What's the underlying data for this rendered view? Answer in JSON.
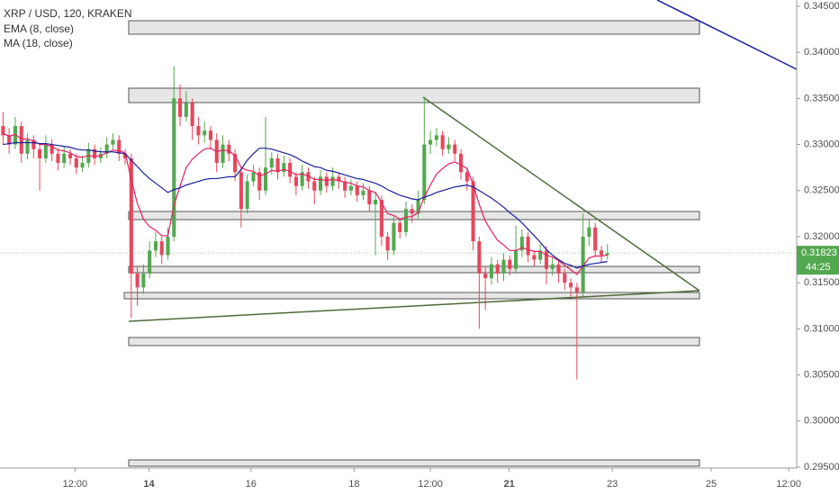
{
  "chart_data": {
    "type": "candlestick",
    "title": "XRP / USD, 120, KRAKEN",
    "up_color": "#53a84f",
    "down_color": "#e8465b",
    "last_price": 0.31823,
    "countdown": "44:25",
    "xlim": [
      -0.5,
      130
    ],
    "xticks": [
      {
        "value": 11.8,
        "label": "12:00"
      },
      {
        "value": 23.9,
        "label": "14"
      },
      {
        "value": 40.6,
        "label": "16"
      },
      {
        "value": 57.5,
        "label": "18"
      },
      {
        "value": 70,
        "label": "12:00"
      },
      {
        "value": 82.9,
        "label": "21"
      },
      {
        "value": 99.8,
        "label": "23"
      },
      {
        "value": 116,
        "label": "25"
      },
      {
        "value": 128.7,
        "label": "12:00"
      }
    ],
    "ylim": [
      0.2949,
      0.34568
    ],
    "yticks": [
      {
        "value": 0.295,
        "label": "0.29500"
      },
      {
        "value": 0.3,
        "label": "0.30000"
      },
      {
        "value": 0.305,
        "label": "0.30500"
      },
      {
        "value": 0.31,
        "label": "0.31000"
      },
      {
        "value": 0.315,
        "label": "0.31500"
      },
      {
        "value": 0.32,
        "label": "0.32000"
      },
      {
        "value": 0.325,
        "label": "0.32500"
      },
      {
        "value": 0.33,
        "label": "0.33000"
      },
      {
        "value": 0.335,
        "label": "0.33500"
      },
      {
        "value": 0.34,
        "label": "0.34000"
      },
      {
        "value": 0.345,
        "label": "0.34500"
      }
    ],
    "open": [
      0.332,
      0.331,
      0.33,
      0.332,
      0.329,
      0.3305,
      0.3295,
      0.3285,
      0.33,
      0.329,
      0.328,
      0.329,
      0.3285,
      0.3275,
      0.328,
      0.3295,
      0.3285,
      0.329,
      0.33,
      0.3305,
      0.329,
      0.3285,
      0.316,
      0.3145,
      0.316,
      0.3185,
      0.3195,
      0.318,
      0.32,
      0.335,
      0.333,
      0.3345,
      0.332,
      0.331,
      0.3315,
      0.3305,
      0.328,
      0.33,
      0.329,
      0.327,
      0.323,
      0.326,
      0.327,
      0.325,
      0.3275,
      0.3285,
      0.327,
      0.328,
      0.3265,
      0.3255,
      0.327,
      0.326,
      0.325,
      0.3265,
      0.3255,
      0.3265,
      0.326,
      0.325,
      0.3255,
      0.3245,
      0.325,
      0.3235,
      0.324,
      0.32,
      0.3185,
      0.3215,
      0.3205,
      0.323,
      0.3225,
      0.324,
      0.33,
      0.3305,
      0.331,
      0.3295,
      0.33,
      0.329,
      0.327,
      0.326,
      0.3195,
      0.316,
      0.3155,
      0.317,
      0.316,
      0.3175,
      0.3165,
      0.3185,
      0.32,
      0.318,
      0.3175,
      0.3185,
      0.3165,
      0.317,
      0.316,
      0.315,
      0.3145,
      0.314,
      0.32,
      0.321,
      0.3185,
      0.318
    ],
    "high": [
      0.3335,
      0.3318,
      0.333,
      0.3325,
      0.3312,
      0.331,
      0.33,
      0.331,
      0.3306,
      0.3296,
      0.3298,
      0.3295,
      0.329,
      0.3288,
      0.3302,
      0.33,
      0.3297,
      0.3308,
      0.3312,
      0.331,
      0.3295,
      0.329,
      0.3168,
      0.317,
      0.3195,
      0.3205,
      0.32,
      0.321,
      0.3385,
      0.3365,
      0.3358,
      0.335,
      0.333,
      0.3325,
      0.332,
      0.3312,
      0.331,
      0.3305,
      0.3295,
      0.3275,
      0.3268,
      0.3278,
      0.3275,
      0.333,
      0.3292,
      0.329,
      0.3288,
      0.3285,
      0.327,
      0.3278,
      0.3275,
      0.3265,
      0.3272,
      0.327,
      0.3275,
      0.327,
      0.3265,
      0.3262,
      0.326,
      0.3258,
      0.3255,
      0.3248,
      0.3245,
      0.3205,
      0.3222,
      0.322,
      0.3238,
      0.3235,
      0.325,
      0.3352,
      0.3315,
      0.3318,
      0.3315,
      0.3308,
      0.3305,
      0.3295,
      0.3275,
      0.3265,
      0.32,
      0.3168,
      0.3178,
      0.3175,
      0.3182,
      0.318,
      0.3212,
      0.3208,
      0.3205,
      0.3185,
      0.3192,
      0.319,
      0.3178,
      0.3175,
      0.3165,
      0.3155,
      0.315,
      0.3225,
      0.3218,
      0.3215,
      0.319,
      0.3192
    ],
    "low": [
      0.33,
      0.329,
      0.3295,
      0.328,
      0.3284,
      0.3285,
      0.325,
      0.328,
      0.3282,
      0.3272,
      0.3275,
      0.3278,
      0.3268,
      0.327,
      0.3275,
      0.3278,
      0.328,
      0.3285,
      0.3295,
      0.3282,
      0.3278,
      0.3112,
      0.3125,
      0.3138,
      0.3155,
      0.3178,
      0.317,
      0.3175,
      0.3195,
      0.332,
      0.3325,
      0.3305,
      0.33,
      0.3302,
      0.3295,
      0.327,
      0.3275,
      0.3282,
      0.326,
      0.321,
      0.3225,
      0.3255,
      0.324,
      0.3245,
      0.3268,
      0.3262,
      0.3265,
      0.3258,
      0.3245,
      0.325,
      0.3252,
      0.3235,
      0.3245,
      0.3248,
      0.325,
      0.3252,
      0.3242,
      0.3245,
      0.3238,
      0.324,
      0.3228,
      0.318,
      0.319,
      0.3175,
      0.318,
      0.3198,
      0.32,
      0.3215,
      0.322,
      0.3235,
      0.329,
      0.3298,
      0.3288,
      0.329,
      0.3282,
      0.3262,
      0.325,
      0.3185,
      0.31,
      0.312,
      0.3148,
      0.315,
      0.3152,
      0.3158,
      0.316,
      0.3178,
      0.3172,
      0.3168,
      0.317,
      0.3148,
      0.3158,
      0.315,
      0.3142,
      0.3135,
      0.3045,
      0.3135,
      0.319,
      0.3178,
      0.3172,
      0.3175
    ],
    "close": [
      0.331,
      0.33,
      0.332,
      0.329,
      0.3305,
      0.3295,
      0.3285,
      0.33,
      0.329,
      0.328,
      0.329,
      0.3285,
      0.3275,
      0.328,
      0.3295,
      0.3285,
      0.329,
      0.33,
      0.3305,
      0.329,
      0.3285,
      0.316,
      0.3145,
      0.316,
      0.3185,
      0.3195,
      0.318,
      0.32,
      0.335,
      0.333,
      0.3345,
      0.332,
      0.331,
      0.3315,
      0.3305,
      0.328,
      0.33,
      0.329,
      0.327,
      0.323,
      0.326,
      0.327,
      0.325,
      0.3275,
      0.3285,
      0.327,
      0.328,
      0.3265,
      0.3255,
      0.327,
      0.326,
      0.325,
      0.3265,
      0.3255,
      0.3265,
      0.326,
      0.325,
      0.3255,
      0.3245,
      0.325,
      0.3235,
      0.324,
      0.32,
      0.3185,
      0.3215,
      0.3205,
      0.323,
      0.3225,
      0.324,
      0.33,
      0.3305,
      0.331,
      0.3295,
      0.33,
      0.329,
      0.327,
      0.326,
      0.3195,
      0.316,
      0.3155,
      0.317,
      0.316,
      0.3175,
      0.3165,
      0.3185,
      0.32,
      0.318,
      0.3175,
      0.3185,
      0.3165,
      0.317,
      0.316,
      0.315,
      0.3145,
      0.314,
      0.32,
      0.321,
      0.3185,
      0.318,
      0.3182
    ],
    "series": [
      {
        "name": "EMA (8, close)",
        "color": "#e91e63",
        "values": [
          0.3312,
          0.3309,
          0.3311,
          0.3306,
          0.3306,
          0.3304,
          0.33,
          0.33,
          0.3298,
          0.3294,
          0.3293,
          0.3291,
          0.3287,
          0.3286,
          0.3288,
          0.3287,
          0.3288,
          0.3291,
          0.3294,
          0.3293,
          0.3291,
          0.3262,
          0.3236,
          0.3219,
          0.3211,
          0.3207,
          0.3201,
          0.3201,
          0.3234,
          0.3255,
          0.3275,
          0.3284,
          0.329,
          0.3295,
          0.3296,
          0.3292,
          0.3294,
          0.3293,
          0.3288,
          0.3275,
          0.3272,
          0.3271,
          0.3266,
          0.3268,
          0.3272,
          0.3271,
          0.3273,
          0.3271,
          0.3267,
          0.3268,
          0.3266,
          0.3262,
          0.3262,
          0.3261,
          0.3262,
          0.3261,
          0.3259,
          0.3258,
          0.3255,
          0.3254,
          0.325,
          0.3248,
          0.3237,
          0.3225,
          0.3223,
          0.3219,
          0.3221,
          0.3222,
          0.3226,
          0.3243,
          0.3256,
          0.3268,
          0.3274,
          0.3279,
          0.3281,
          0.3278,
          0.3274,
          0.3257,
          0.3235,
          0.3217,
          0.3206,
          0.3196,
          0.3191,
          0.3185,
          0.3185,
          0.3188,
          0.3186,
          0.3184,
          0.3184,
          0.318,
          0.3178,
          0.3174,
          0.3169,
          0.3164,
          0.3159,
          0.3168,
          0.3177,
          0.3179,
          0.3179,
          0.318
        ]
      },
      {
        "name": "MA (18, close)",
        "color": "#1a1f9e",
        "values": [
          0.33,
          0.3301,
          0.3302,
          0.3302,
          0.3302,
          0.3302,
          0.3301,
          0.3301,
          0.33,
          0.3299,
          0.3298,
          0.3297,
          0.3295,
          0.3294,
          0.3294,
          0.3293,
          0.3292,
          0.3292,
          0.3292,
          0.3291,
          0.329,
          0.3283,
          0.3276,
          0.3269,
          0.3263,
          0.3258,
          0.3253,
          0.3248,
          0.3251,
          0.3253,
          0.3256,
          0.3258,
          0.326,
          0.3262,
          0.3263,
          0.3263,
          0.3264,
          0.3265,
          0.3265,
          0.3273,
          0.3283,
          0.329,
          0.3296,
          0.3296,
          0.3295,
          0.3293,
          0.3291,
          0.3289,
          0.3286,
          0.3282,
          0.3279,
          0.3276,
          0.3275,
          0.3272,
          0.3271,
          0.3269,
          0.3267,
          0.3265,
          0.3263,
          0.3262,
          0.326,
          0.3258,
          0.3255,
          0.3251,
          0.3248,
          0.3245,
          0.3243,
          0.3241,
          0.324,
          0.3243,
          0.3245,
          0.3248,
          0.325,
          0.3252,
          0.3254,
          0.3255,
          0.3256,
          0.3254,
          0.325,
          0.3246,
          0.3242,
          0.3237,
          0.3232,
          0.3226,
          0.3221,
          0.3215,
          0.3208,
          0.3201,
          0.3194,
          0.3186,
          0.318,
          0.3175,
          0.3171,
          0.3169,
          0.3166,
          0.3168,
          0.317,
          0.3171,
          0.3172,
          0.3173
        ]
      }
    ]
  }
}
